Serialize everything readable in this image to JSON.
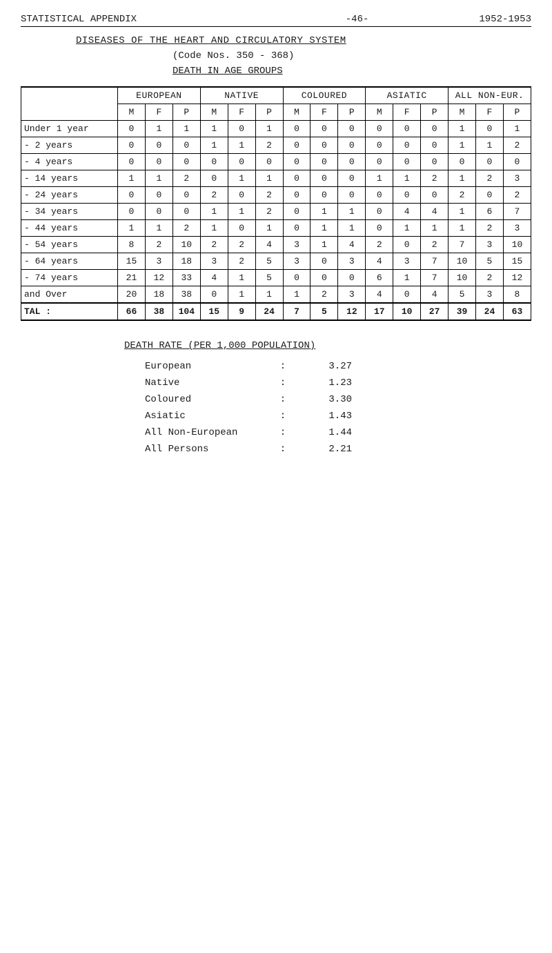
{
  "page_meta": {
    "left": "STATISTICAL APPENDIX",
    "mid": "-46-",
    "right": "1952-1953"
  },
  "titles": {
    "diseases": "DISEASES  OF  THE  HEART  AND  CIRCULATORY  SYSTEM",
    "codes": "(Code Nos. 350 - 368)",
    "death_groups": "DEATH  IN  AGE  GROUPS"
  },
  "table": {
    "row_label_width": "140px",
    "groups": [
      "EUROPEAN",
      "NATIVE",
      "COLOURED",
      "ASIATIC",
      "ALL NON-EUR."
    ],
    "sub": [
      "M",
      "F",
      "P"
    ],
    "rows": [
      {
        "label": "Under 1 year",
        "cells": [
          "0",
          "1",
          "1",
          "1",
          "0",
          "1",
          "0",
          "0",
          "0",
          "0",
          "0",
          "0",
          "1",
          "0",
          "1"
        ]
      },
      {
        "label": "- 2 years",
        "cells": [
          "0",
          "0",
          "0",
          "1",
          "1",
          "2",
          "0",
          "0",
          "0",
          "0",
          "0",
          "0",
          "1",
          "1",
          "2"
        ]
      },
      {
        "label": "- 4 years",
        "cells": [
          "0",
          "0",
          "0",
          "0",
          "0",
          "0",
          "0",
          "0",
          "0",
          "0",
          "0",
          "0",
          "0",
          "0",
          "0"
        ]
      },
      {
        "label": "- 14 years",
        "cells": [
          "1",
          "1",
          "2",
          "0",
          "1",
          "1",
          "0",
          "0",
          "0",
          "1",
          "1",
          "2",
          "1",
          "2",
          "3"
        ]
      },
      {
        "label": "- 24 years",
        "cells": [
          "0",
          "0",
          "0",
          "2",
          "0",
          "2",
          "0",
          "0",
          "0",
          "0",
          "0",
          "0",
          "2",
          "0",
          "2"
        ]
      },
      {
        "label": "- 34 years",
        "cells": [
          "0",
          "0",
          "0",
          "1",
          "1",
          "2",
          "0",
          "1",
          "1",
          "0",
          "4",
          "4",
          "1",
          "6",
          "7"
        ]
      },
      {
        "label": "- 44 years",
        "cells": [
          "1",
          "1",
          "2",
          "1",
          "0",
          "1",
          "0",
          "1",
          "1",
          "0",
          "1",
          "1",
          "1",
          "2",
          "3"
        ]
      },
      {
        "label": "- 54 years",
        "cells": [
          "8",
          "2",
          "10",
          "2",
          "2",
          "4",
          "3",
          "1",
          "4",
          "2",
          "0",
          "2",
          "7",
          "3",
          "10"
        ]
      },
      {
        "label": "- 64 years",
        "cells": [
          "15",
          "3",
          "18",
          "3",
          "2",
          "5",
          "3",
          "0",
          "3",
          "4",
          "3",
          "7",
          "10",
          "5",
          "15"
        ]
      },
      {
        "label": "- 74 years",
        "cells": [
          "21",
          "12",
          "33",
          "4",
          "1",
          "5",
          "0",
          "0",
          "0",
          "6",
          "1",
          "7",
          "10",
          "2",
          "12"
        ]
      },
      {
        "label": "and Over",
        "cells": [
          "20",
          "18",
          "38",
          "0",
          "1",
          "1",
          "1",
          "2",
          "3",
          "4",
          "0",
          "4",
          "5",
          "3",
          "8"
        ]
      }
    ],
    "total": {
      "label": "TAL  :",
      "cells": [
        "66",
        "38",
        "104",
        "15",
        "9",
        "24",
        "7",
        "5",
        "12",
        "17",
        "10",
        "27",
        "39",
        "24",
        "63"
      ]
    }
  },
  "death_rate": {
    "title": "DEATH  RATE  (PER  1,000  POPULATION)",
    "rows": [
      {
        "label": "European",
        "value": "3.27"
      },
      {
        "label": "Native",
        "value": "1.23"
      },
      {
        "label": "Coloured",
        "value": "3.30"
      },
      {
        "label": "Asiatic",
        "value": "1.43"
      },
      {
        "label": "All Non-European",
        "value": "1.44"
      },
      {
        "label": "All Persons",
        "value": "2.21"
      }
    ]
  },
  "colors": {
    "text": "#1a1a1a",
    "bg": "#ffffff",
    "rule": "#000000"
  }
}
